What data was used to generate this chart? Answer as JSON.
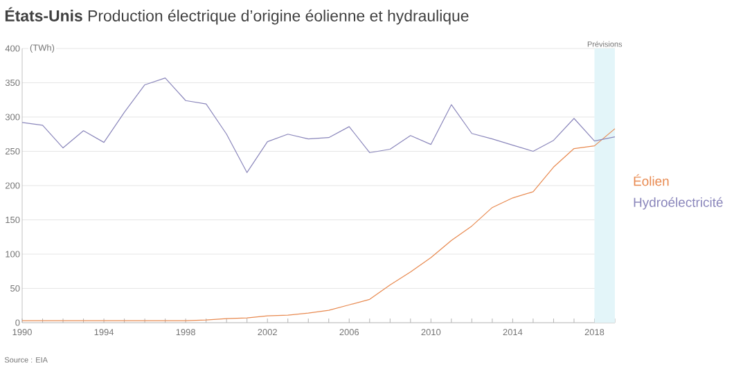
{
  "chart_data": {
    "type": "line",
    "title": "**États-Unis** Production électrique d’origine éolienne et hydraulique",
    "ylabel": "(TWh)",
    "x": [
      1990,
      1991,
      1992,
      1993,
      1994,
      1995,
      1996,
      1997,
      1998,
      1999,
      2000,
      2001,
      2002,
      2003,
      2004,
      2005,
      2006,
      2007,
      2008,
      2009,
      2010,
      2011,
      2012,
      2013,
      2014,
      2015,
      2016,
      2017,
      2018,
      2019
    ],
    "series": [
      {
        "name": "Éolien",
        "color": "#e8894f",
        "values": [
          3,
          3,
          3,
          3,
          3,
          3,
          3,
          3,
          3,
          4,
          6,
          7,
          10,
          11,
          14,
          18,
          26,
          34,
          55,
          74,
          95,
          120,
          141,
          168,
          182,
          191,
          227,
          254,
          258,
          283
        ]
      },
      {
        "name": "Hydroélectricité",
        "color": "#8a86bb",
        "values": [
          292,
          288,
          255,
          280,
          263,
          307,
          347,
          357,
          324,
          319,
          275,
          219,
          264,
          275,
          268,
          270,
          286,
          248,
          253,
          273,
          260,
          318,
          276,
          268,
          259,
          250,
          266,
          298,
          265,
          271
        ]
      }
    ],
    "xlim": [
      1990,
      2019
    ],
    "ylim": [
      0,
      400
    ],
    "xticks": [
      1990,
      {
        "value": 1991,
        "label": null
      },
      {
        "value": 1992,
        "label": null
      },
      {
        "value": 1993,
        "label": null
      },
      1994,
      {
        "value": 1995,
        "label": null
      },
      {
        "value": 1996,
        "label": null
      },
      {
        "value": 1997,
        "label": null
      },
      1998,
      {
        "value": 1999,
        "label": null
      },
      {
        "value": 2000,
        "label": null
      },
      {
        "value": 2001,
        "label": null
      },
      2002,
      {
        "value": 2003,
        "label": null
      },
      {
        "value": 2004,
        "label": null
      },
      {
        "value": 2005,
        "label": null
      },
      2006,
      {
        "value": 2007,
        "label": null
      },
      {
        "value": 2008,
        "label": null
      },
      {
        "value": 2009,
        "label": null
      },
      2010,
      {
        "value": 2011,
        "label": null
      },
      {
        "value": 2012,
        "label": null
      },
      {
        "value": 2013,
        "label": null
      },
      2014,
      {
        "value": 2015,
        "label": null
      },
      {
        "value": 2016,
        "label": null
      },
      {
        "value": 2017,
        "label": null
      },
      2018,
      {
        "value": 2019,
        "label": null
      }
    ],
    "yticks": [
      0,
      50,
      100,
      150,
      200,
      250,
      300,
      350,
      400
    ],
    "grid": "y",
    "legend": "right",
    "bands": [
      {
        "axis": "x",
        "from": 2018,
        "to": 2019,
        "label": "Prévisions",
        "color": "#e3f5f9"
      }
    ],
    "annotations": [
      "Source : EIA"
    ]
  }
}
